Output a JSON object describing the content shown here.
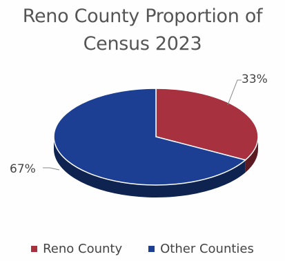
{
  "chart_data": {
    "type": "pie",
    "title_lines": [
      "Reno County Proportion of",
      "Census 2023"
    ],
    "slices": [
      {
        "name": "Reno County",
        "value": 33,
        "label": "33%",
        "color": "#a8313f"
      },
      {
        "name": "Other Counties",
        "value": 67,
        "label": "67%",
        "color": "#1c3f94"
      }
    ],
    "legend_position": "bottom",
    "style": "3d-tilted"
  }
}
